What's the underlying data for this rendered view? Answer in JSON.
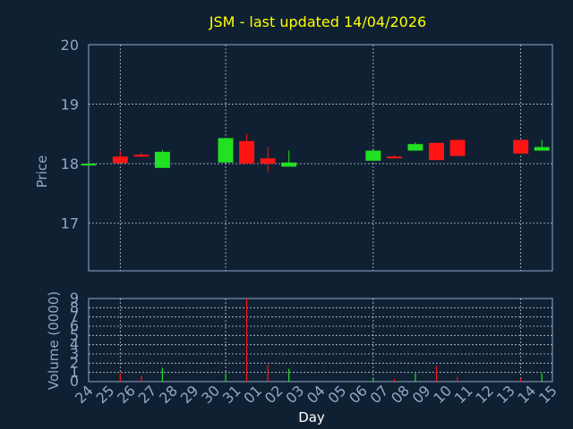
{
  "chart_data": [
    {
      "type": "candlestick",
      "title": "JSM - last updated 14/04/2026",
      "ylabel": "Price",
      "ylim": [
        16.2,
        20
      ],
      "yticks": [
        "20",
        "19",
        "18",
        "17"
      ],
      "colors": {
        "up": "#22e022",
        "down": "#ff1414",
        "title": "#ffff00",
        "axis_text": "#8fa8c8",
        "background": "#0f2033"
      },
      "grid": true,
      "x": [
        "24",
        "25",
        "26",
        "27",
        "28",
        "29",
        "30",
        "31",
        "01",
        "02",
        "03",
        "04",
        "05",
        "06",
        "07",
        "08",
        "09",
        "10",
        "11",
        "12",
        "13",
        "14",
        "15"
      ],
      "candles": [
        {
          "x": "24",
          "open": 18.0,
          "high": 18.01,
          "low": 17.99,
          "close": 18.0
        },
        {
          "x": "25",
          "open": 18.12,
          "high": 18.22,
          "low": 18.0,
          "close": 18.01
        },
        {
          "x": "26",
          "open": 18.15,
          "high": 18.18,
          "low": 18.12,
          "close": 18.14
        },
        {
          "x": "27",
          "open": 17.93,
          "high": 18.23,
          "low": 17.93,
          "close": 18.2
        },
        {
          "x": "30",
          "open": 18.02,
          "high": 18.43,
          "low": 18.02,
          "close": 18.43
        },
        {
          "x": "31",
          "open": 18.38,
          "high": 18.5,
          "low": 18.0,
          "close": 18.0
        },
        {
          "x": "01",
          "open": 18.09,
          "high": 18.28,
          "low": 17.85,
          "close": 18.0
        },
        {
          "x": "02",
          "open": 17.95,
          "high": 18.22,
          "low": 17.95,
          "close": 18.02
        },
        {
          "x": "06",
          "open": 18.05,
          "high": 18.23,
          "low": 18.05,
          "close": 18.22
        },
        {
          "x": "07",
          "open": 18.12,
          "high": 18.14,
          "low": 18.1,
          "close": 18.11
        },
        {
          "x": "08",
          "open": 18.22,
          "high": 18.36,
          "low": 18.22,
          "close": 18.33
        },
        {
          "x": "09",
          "open": 18.35,
          "high": 18.35,
          "low": 18.06,
          "close": 18.06
        },
        {
          "x": "10",
          "open": 18.4,
          "high": 18.4,
          "low": 18.13,
          "close": 18.13
        },
        {
          "x": "13",
          "open": 18.4,
          "high": 18.4,
          "low": 18.17,
          "close": 18.17
        },
        {
          "x": "14",
          "open": 18.22,
          "high": 18.4,
          "low": 18.22,
          "close": 18.28
        }
      ]
    },
    {
      "type": "bar",
      "ylabel": "Volume (0000)",
      "xlabel": "Day",
      "ylim": [
        0,
        9
      ],
      "yticks": [
        "0",
        "1",
        "2",
        "3",
        "4",
        "5",
        "6",
        "7",
        "8",
        "9"
      ],
      "grid": true,
      "categories": [
        "25",
        "26",
        "27",
        "30",
        "31",
        "01",
        "02",
        "06",
        "07",
        "08",
        "09",
        "10",
        "13",
        "14"
      ],
      "values": [
        0.9,
        0.6,
        1.5,
        0.8,
        9.0,
        1.8,
        1.4,
        0.4,
        0.3,
        0.9,
        1.7,
        0.5,
        0.4,
        0.9
      ],
      "directions": [
        "down",
        "down",
        "up",
        "up",
        "down",
        "down",
        "up",
        "up",
        "down",
        "up",
        "down",
        "down",
        "down",
        "up"
      ]
    }
  ]
}
